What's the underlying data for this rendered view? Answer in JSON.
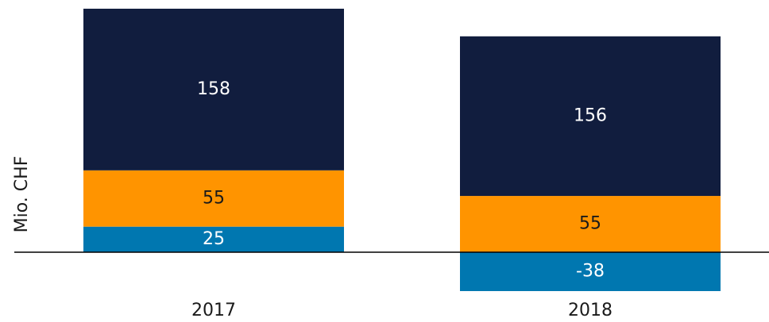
{
  "chart_data": {
    "type": "stacked_bar",
    "y_label": "Mio. CHF",
    "categories": [
      "2017",
      "2018"
    ],
    "series": [
      {
        "color": "#0077b0",
        "values": [
          25,
          -38
        ]
      },
      {
        "color": "#ff9400",
        "values": [
          55,
          55
        ]
      },
      {
        "color": "#111d3e",
        "values": [
          158,
          156
        ]
      }
    ],
    "ylim": [
      -60,
      240
    ]
  }
}
